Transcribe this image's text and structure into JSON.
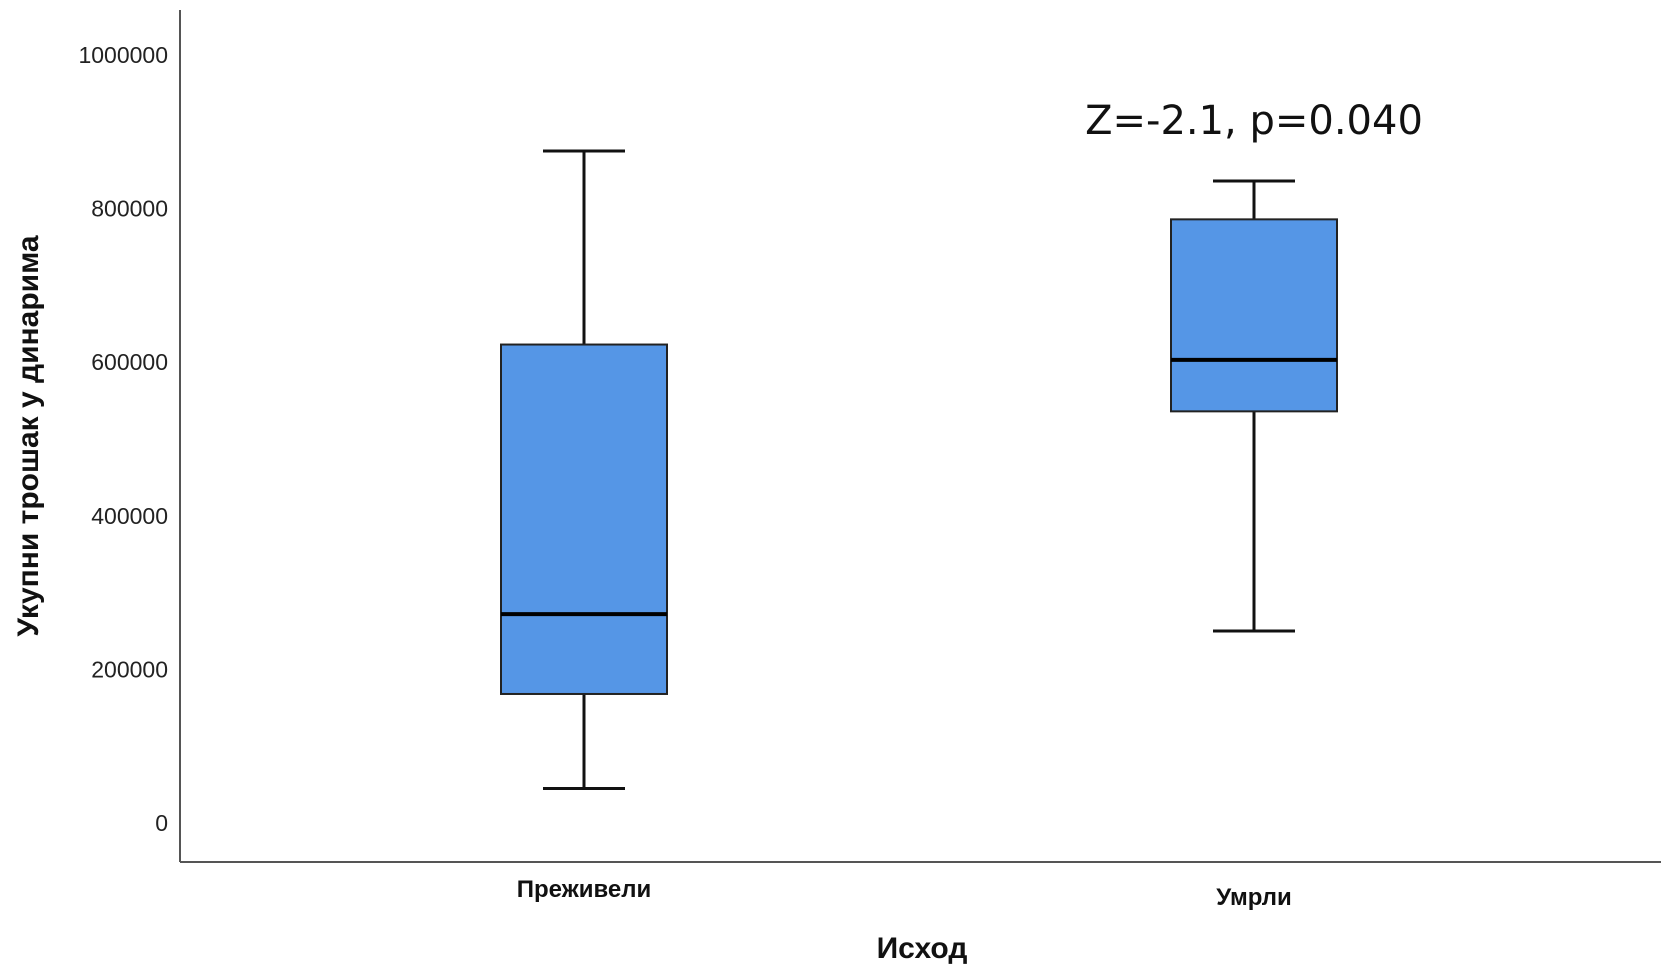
{
  "chart_data": {
    "type": "boxplot",
    "xlabel": "Исход",
    "ylabel": "Укупни трошак у динарима",
    "ylim": [
      0,
      1000000
    ],
    "yticks": [
      "0",
      "200000",
      "400000",
      "600000",
      "800000",
      "1000000"
    ],
    "ytick_values": [
      0,
      200000,
      400000,
      600000,
      800000,
      1000000
    ],
    "categories": [
      "Преживели",
      "Умрли"
    ],
    "boxes": [
      {
        "category": "Преживели",
        "whisker_low": 45000,
        "q1": 168000,
        "median": 272000,
        "q3": 623000,
        "whisker_high": 875000
      },
      {
        "category": "Умрли",
        "whisker_low": 250000,
        "q1": 536000,
        "median": 603000,
        "q3": 786000,
        "whisker_high": 836000
      }
    ],
    "annotation": "Z=-2.1, p=0.040",
    "box_color": "#5596E6",
    "grid": false,
    "legend": "none"
  }
}
